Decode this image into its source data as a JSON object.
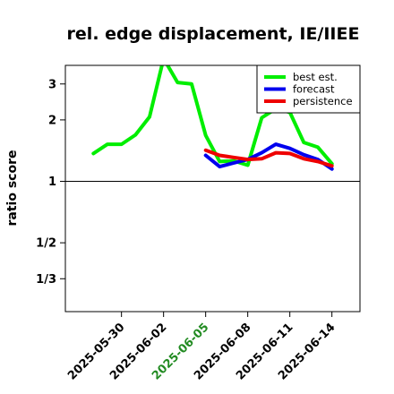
{
  "chart_data": {
    "type": "line",
    "title": "rel. edge displacement, IE/IIEE",
    "xlabel": "",
    "ylabel": "ratio score",
    "y_scale": "log",
    "ylim": [
      0.23,
      3.7
    ],
    "xlim": [
      "2025-05-26",
      "2025-06-16"
    ],
    "y_ticks": [
      {
        "value": 3,
        "label": "3"
      },
      {
        "value": 2,
        "label": "2"
      },
      {
        "value": 1,
        "label": "1"
      },
      {
        "value": 0.5,
        "label": "1/2"
      },
      {
        "value": 0.3333,
        "label": "1/3"
      }
    ],
    "x_ticks": [
      {
        "date": "2025-05-30",
        "label": "2025-05-30",
        "color": "#000000"
      },
      {
        "date": "2025-06-02",
        "label": "2025-06-02",
        "color": "#000000"
      },
      {
        "date": "2025-06-05",
        "label": "2025-06-05",
        "color": "#228b22"
      },
      {
        "date": "2025-06-08",
        "label": "2025-06-08",
        "color": "#000000"
      },
      {
        "date": "2025-06-11",
        "label": "2025-06-11",
        "color": "#000000"
      },
      {
        "date": "2025-06-14",
        "label": "2025-06-14",
        "color": "#000000"
      }
    ],
    "reference_line": 1,
    "grid": false,
    "legend_position": "top-right",
    "series": [
      {
        "name": "best est.",
        "color": "#00ee00",
        "points": [
          {
            "x": "2025-05-28",
            "y": 1.37
          },
          {
            "x": "2025-05-29",
            "y": 1.52
          },
          {
            "x": "2025-05-30",
            "y": 1.52
          },
          {
            "x": "2025-05-31",
            "y": 1.69
          },
          {
            "x": "2025-06-01",
            "y": 2.07
          },
          {
            "x": "2025-06-02",
            "y": 4.0
          },
          {
            "x": "2025-06-03",
            "y": 3.05
          },
          {
            "x": "2025-06-04",
            "y": 3.0
          },
          {
            "x": "2025-06-05",
            "y": 1.68
          },
          {
            "x": "2025-06-06",
            "y": 1.25
          },
          {
            "x": "2025-06-07",
            "y": 1.26
          },
          {
            "x": "2025-06-08",
            "y": 1.2
          },
          {
            "x": "2025-06-09",
            "y": 2.05
          },
          {
            "x": "2025-06-10",
            "y": 2.27
          },
          {
            "x": "2025-06-11",
            "y": 2.18
          },
          {
            "x": "2025-06-12",
            "y": 1.55
          },
          {
            "x": "2025-06-13",
            "y": 1.47
          },
          {
            "x": "2025-06-14",
            "y": 1.22
          }
        ]
      },
      {
        "name": "forecast",
        "color": "#0000ee",
        "points": [
          {
            "x": "2025-06-05",
            "y": 1.34
          },
          {
            "x": "2025-06-06",
            "y": 1.18
          },
          {
            "x": "2025-06-07",
            "y": 1.23
          },
          {
            "x": "2025-06-08",
            "y": 1.28
          },
          {
            "x": "2025-06-09",
            "y": 1.38
          },
          {
            "x": "2025-06-10",
            "y": 1.52
          },
          {
            "x": "2025-06-11",
            "y": 1.45
          },
          {
            "x": "2025-06-12",
            "y": 1.35
          },
          {
            "x": "2025-06-13",
            "y": 1.28
          },
          {
            "x": "2025-06-14",
            "y": 1.15
          }
        ]
      },
      {
        "name": "persistence",
        "color": "#ee0000",
        "points": [
          {
            "x": "2025-06-05",
            "y": 1.42
          },
          {
            "x": "2025-06-06",
            "y": 1.34
          },
          {
            "x": "2025-06-07",
            "y": 1.31
          },
          {
            "x": "2025-06-08",
            "y": 1.28
          },
          {
            "x": "2025-06-09",
            "y": 1.29
          },
          {
            "x": "2025-06-10",
            "y": 1.38
          },
          {
            "x": "2025-06-11",
            "y": 1.37
          },
          {
            "x": "2025-06-12",
            "y": 1.29
          },
          {
            "x": "2025-06-13",
            "y": 1.25
          },
          {
            "x": "2025-06-14",
            "y": 1.19
          }
        ]
      }
    ]
  }
}
